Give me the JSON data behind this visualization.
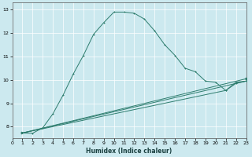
{
  "xlabel": "Humidex (Indice chaleur)",
  "xlim": [
    0,
    23
  ],
  "ylim": [
    7.5,
    13.3
  ],
  "xticks": [
    0,
    1,
    2,
    3,
    4,
    5,
    6,
    7,
    8,
    9,
    10,
    11,
    12,
    13,
    14,
    15,
    16,
    17,
    18,
    19,
    20,
    21,
    22,
    23
  ],
  "yticks": [
    8,
    9,
    10,
    11,
    12,
    13
  ],
  "bg_color": "#cce9ef",
  "grid_color": "#ffffff",
  "line_color": "#2e7d6e",
  "curve1_x": [
    1,
    2,
    3,
    4,
    5,
    6,
    7,
    8,
    9,
    10,
    11,
    12,
    13,
    14,
    15,
    16,
    17,
    18,
    19,
    20,
    21,
    22,
    23
  ],
  "curve1_y": [
    7.73,
    7.72,
    7.95,
    8.55,
    9.35,
    10.25,
    11.05,
    11.95,
    12.45,
    12.9,
    12.9,
    12.85,
    12.6,
    12.1,
    11.5,
    11.05,
    10.5,
    10.35,
    9.95,
    9.9,
    9.55,
    9.9,
    9.95
  ],
  "curve2_x": [
    1,
    23
  ],
  "curve2_y": [
    7.73,
    9.95
  ],
  "curve3_x": [
    1,
    23
  ],
  "curve3_y": [
    7.73,
    10.05
  ],
  "curve4_x": [
    1,
    21,
    22,
    23
  ],
  "curve4_y": [
    7.73,
    9.55,
    9.85,
    9.95
  ]
}
